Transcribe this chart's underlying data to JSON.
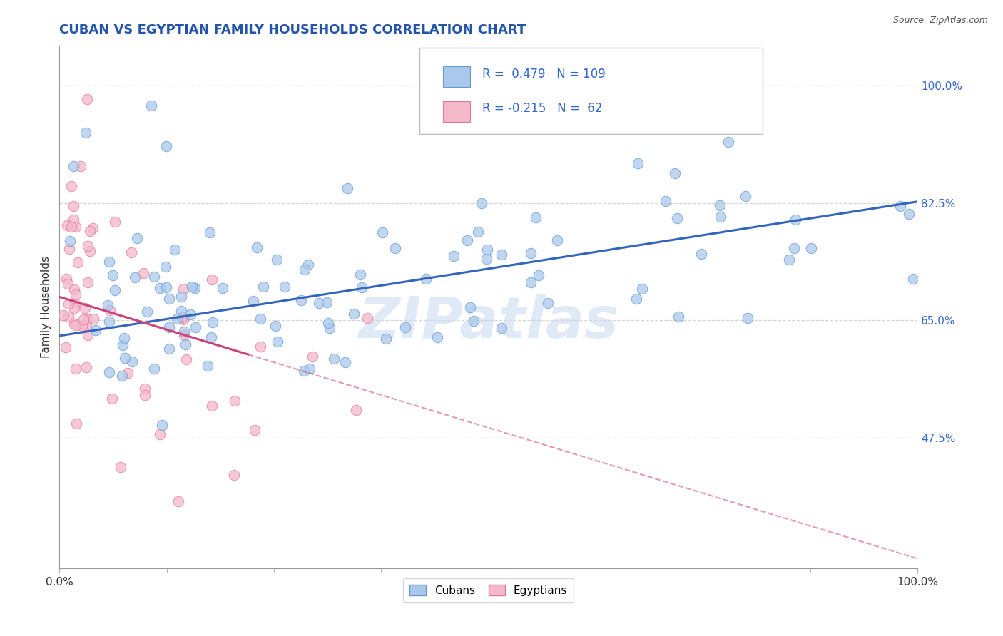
{
  "title": "CUBAN VS EGYPTIAN FAMILY HOUSEHOLDS CORRELATION CHART",
  "source": "Source: ZipAtlas.com",
  "ylabel": "Family Households",
  "title_color": "#2255aa",
  "title_fontsize": 13,
  "background_color": "#ffffff",
  "cubans_color": "#aac8ec",
  "egyptians_color": "#f5b8ca",
  "cubans_edge": "#6699cc",
  "egyptians_edge": "#dd7799",
  "trend_cuban_color": "#3366bb",
  "trend_egyptian_color": "#cc4477",
  "R_cuban": 0.479,
  "N_cuban": 109,
  "R_egyptian": -0.215,
  "N_egyptian": 62,
  "xmin": 0.0,
  "xmax": 1.0,
  "ymin": 0.28,
  "ymax": 1.06,
  "ytick_labels_right": [
    "47.5%",
    "65.0%",
    "82.5%",
    "100.0%"
  ],
  "ytick_positions_right": [
    0.475,
    0.65,
    0.825,
    1.0
  ],
  "grid_color": "#cccccc",
  "watermark": "ZIPatlas",
  "legend_cuban_label": "Cubans",
  "legend_egyptian_label": "Egyptians",
  "cuban_trend_y0": 0.627,
  "cuban_trend_y1": 0.827,
  "egyptian_trend_y0": 0.685,
  "egyptian_trend_y1": 0.295
}
